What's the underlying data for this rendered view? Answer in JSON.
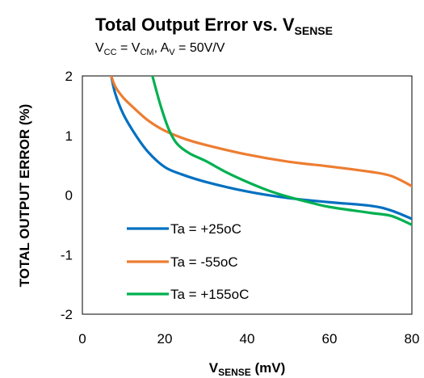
{
  "chart_data": {
    "type": "line",
    "title": {
      "main": "Total Output Error vs. V",
      "sub": "SENSE"
    },
    "subtitle": {
      "v_cc": "V",
      "cc_sub": "CC",
      "eq1": " = V",
      "cm_sub": "CM",
      "sep": ",  A",
      "v_sub": "V",
      "rest": " = 50V/V"
    },
    "xlabel": {
      "main": "V",
      "sub": "SENSE",
      "unit": " (mV)"
    },
    "ylabel": "TOTAL OUTPUT ERROR (%)",
    "xlim": [
      0,
      80
    ],
    "ylim": [
      -2,
      2
    ],
    "x_ticks": [
      "0",
      "20",
      "40",
      "60",
      "80"
    ],
    "y_ticks": [
      "2",
      "1",
      "0",
      "-1",
      "-2"
    ],
    "legend_position": "bottom-left",
    "series": [
      {
        "name": "Ta = +25oC",
        "color": "#0070c0",
        "points": [
          [
            7,
            2.0
          ],
          [
            8,
            1.7
          ],
          [
            10,
            1.35
          ],
          [
            13,
            1.0
          ],
          [
            16,
            0.72
          ],
          [
            20,
            0.47
          ],
          [
            24,
            0.35
          ],
          [
            30,
            0.22
          ],
          [
            40,
            0.06
          ],
          [
            50,
            -0.05
          ],
          [
            60,
            -0.12
          ],
          [
            70,
            -0.18
          ],
          [
            75,
            -0.26
          ],
          [
            80,
            -0.4
          ]
        ]
      },
      {
        "name": "Ta = -55oC",
        "color": "#ed7d31",
        "points": [
          [
            7,
            2.0
          ],
          [
            8,
            1.82
          ],
          [
            10,
            1.63
          ],
          [
            13,
            1.43
          ],
          [
            16,
            1.25
          ],
          [
            20,
            1.08
          ],
          [
            25,
            0.94
          ],
          [
            30,
            0.84
          ],
          [
            40,
            0.68
          ],
          [
            50,
            0.56
          ],
          [
            60,
            0.48
          ],
          [
            70,
            0.39
          ],
          [
            75,
            0.32
          ],
          [
            80,
            0.15
          ]
        ]
      },
      {
        "name": "Ta = +155oC",
        "color": "#00b050",
        "points": [
          [
            17,
            2.0
          ],
          [
            19,
            1.5
          ],
          [
            21,
            1.1
          ],
          [
            23,
            0.86
          ],
          [
            26,
            0.7
          ],
          [
            30,
            0.57
          ],
          [
            35,
            0.38
          ],
          [
            40,
            0.22
          ],
          [
            45,
            0.08
          ],
          [
            50,
            -0.03
          ],
          [
            55,
            -0.12
          ],
          [
            60,
            -0.2
          ],
          [
            70,
            -0.3
          ],
          [
            75,
            -0.35
          ],
          [
            80,
            -0.5
          ]
        ]
      }
    ]
  }
}
